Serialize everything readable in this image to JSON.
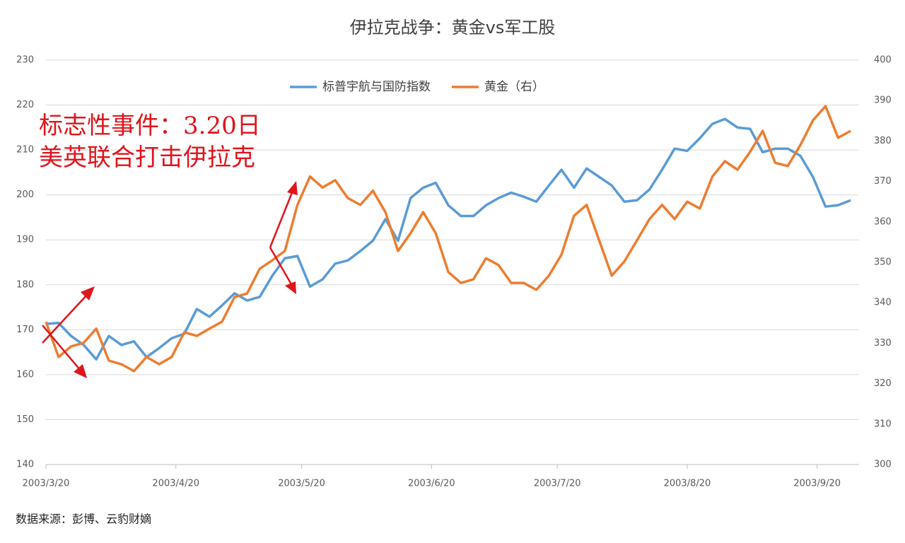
{
  "chart_data": {
    "type": "line",
    "title": "伊拉克战争：黄金vs军工股",
    "annotations": [
      "标志性事件：3.20日",
      "美英联合打击伊拉克"
    ],
    "source": "数据来源：彭博、云豹财嫡",
    "x": [
      "2003/3/20",
      "2003/3/23",
      "2003/3/26",
      "2003/3/29",
      "2003/4/1",
      "2003/4/4",
      "2003/4/7",
      "2003/4/10",
      "2003/4/13",
      "2003/4/16",
      "2003/4/19",
      "2003/4/22",
      "2003/4/25",
      "2003/4/28",
      "2003/5/1",
      "2003/5/4",
      "2003/5/7",
      "2003/5/10",
      "2003/5/13",
      "2003/5/16",
      "2003/5/19",
      "2003/5/22",
      "2003/5/25",
      "2003/5/28",
      "2003/5/31",
      "2003/6/3",
      "2003/6/6",
      "2003/6/9",
      "2003/6/12",
      "2003/6/15",
      "2003/6/18",
      "2003/6/21",
      "2003/6/24",
      "2003/6/27",
      "2003/6/30",
      "2003/7/3",
      "2003/7/6",
      "2003/7/9",
      "2003/7/12",
      "2003/7/15",
      "2003/7/18",
      "2003/7/21",
      "2003/7/24",
      "2003/7/27",
      "2003/7/30",
      "2003/8/2",
      "2003/8/5",
      "2003/8/8",
      "2003/8/11",
      "2003/8/14",
      "2003/8/17",
      "2003/8/20",
      "2003/8/23",
      "2003/8/26",
      "2003/8/29",
      "2003/9/1",
      "2003/9/4",
      "2003/9/7",
      "2003/9/10",
      "2003/9/13",
      "2003/9/16",
      "2003/9/19",
      "2003/9/22",
      "2003/9/25",
      "2003/9/28"
    ],
    "series": [
      {
        "name": "标普宇航与国防指数",
        "color": "#5b9bd5",
        "axis": "y",
        "values": [
          171.3,
          171.5,
          168.6,
          166.6,
          163.4,
          168.6,
          166.6,
          167.4,
          163.9,
          165.9,
          168.1,
          169.1,
          174.6,
          172.9,
          175.4,
          178.1,
          176.5,
          177.3,
          182.0,
          185.9,
          186.4,
          179.6,
          181.2,
          184.7,
          185.4,
          187.5,
          189.8,
          194.6,
          189.8,
          199.3,
          201.6,
          202.7,
          197.7,
          195.3,
          195.3,
          197.7,
          199.3,
          200.5,
          199.6,
          198.5,
          202.1,
          205.6,
          201.6,
          205.9,
          204.0,
          202.1,
          198.5,
          198.8,
          201.2,
          205.6,
          210.3,
          209.8,
          212.6,
          215.8,
          216.9,
          215.0,
          214.7,
          209.5,
          210.3,
          210.3,
          208.7,
          204.0,
          197.4,
          197.7,
          198.8
        ]
      },
      {
        "name": "黄金（右）",
        "color": "#ed7d31",
        "axis": "y2",
        "values": [
          335.3,
          326.6,
          329.2,
          330.1,
          333.6,
          325.7,
          324.8,
          323.1,
          326.6,
          324.8,
          326.6,
          332.7,
          331.8,
          333.6,
          335.3,
          341.4,
          342.3,
          348.4,
          350.5,
          352.8,
          364.2,
          371.2,
          368.5,
          370.3,
          365.9,
          364.2,
          367.7,
          362.4,
          352.8,
          357.2,
          362.4,
          357.2,
          347.6,
          344.9,
          345.8,
          351.0,
          349.3,
          344.9,
          344.9,
          343.2,
          346.7,
          351.9,
          361.5,
          364.2,
          355.4,
          346.7,
          350.2,
          355.4,
          360.7,
          364.2,
          360.7,
          365.0,
          363.3,
          371.2,
          375.0,
          372.9,
          377.3,
          382.5,
          374.6,
          373.8,
          379.0,
          385.1,
          388.6,
          380.8,
          382.5
        ]
      }
    ],
    "xlim": [
      "2003/3/20",
      "2003/9/30"
    ],
    "xticks": [
      "2003/3/20",
      "2003/4/20",
      "2003/5/20",
      "2003/6/20",
      "2003/7/20",
      "2003/8/20",
      "2003/9/20"
    ],
    "ylim": [
      140,
      230
    ],
    "yticks": [
      140,
      150,
      160,
      170,
      180,
      190,
      200,
      210,
      220,
      230
    ],
    "y2lim": [
      300,
      400
    ],
    "y2ticks": [
      300,
      310,
      320,
      330,
      340,
      350,
      360,
      370,
      380,
      390,
      400
    ],
    "grid": true,
    "legend": "top"
  }
}
